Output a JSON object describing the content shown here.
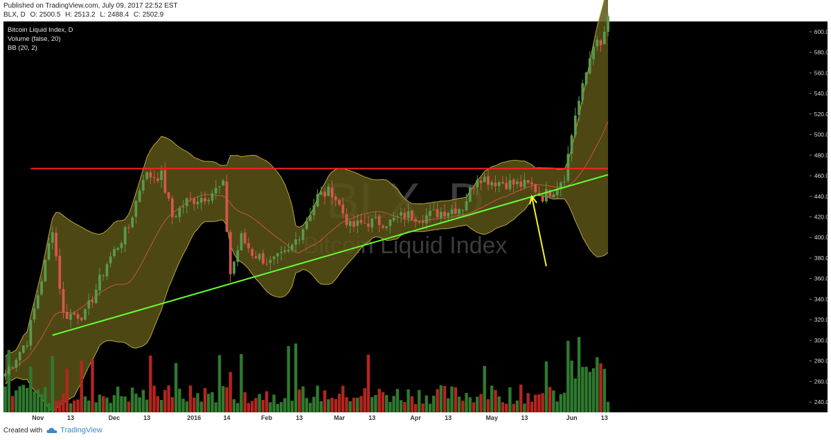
{
  "header": {
    "published": "Published on TradingView.com, July 09, 2017 22:52 EST",
    "symbol": "BLX, D",
    "open": "O: 2500.5",
    "high": "H: 2513.2",
    "low": "L: 2488.4",
    "close": "C: 2502.9"
  },
  "legend": {
    "title": "Bitcoin Liquid Index, D",
    "volume": "Volume (false, 20)",
    "bb": "BB (20, 2)"
  },
  "watermark": {
    "ticker": "BLX, D",
    "name": "Bitcoin Liquid Index"
  },
  "footer": {
    "created_with": "Created with",
    "brand": "TradingView"
  },
  "colors": {
    "background": "#000000",
    "up_candle": "#5a9a4e",
    "down_candle": "#d6574b",
    "band_fill": "#5a5418",
    "band_line": "#b7a93a",
    "basis_line": "#c9563c",
    "resistance": "#ff2020",
    "support": "#66ff33",
    "arrow": "#f5f52a",
    "vol_up": "#2f7a2f",
    "vol_down": "#b3261e"
  },
  "chart_data": {
    "type": "candlestick",
    "title": "Bitcoin Liquid Index, D",
    "ylim": [
      230,
      610
    ],
    "y_ticks": [
      240,
      260,
      280,
      300,
      320,
      340,
      360,
      380,
      400,
      420,
      440,
      460,
      480,
      500,
      520,
      540,
      560,
      580,
      600
    ],
    "x_labels": [
      "Nov",
      "13",
      "Dec",
      "13",
      "2016",
      "14",
      "Feb",
      "13",
      "Mar",
      "13",
      "Apr",
      "13",
      "May",
      "13",
      "Jun",
      "13"
    ],
    "bar_count": 222,
    "x_label_bars": [
      9,
      18,
      30,
      39,
      52,
      61,
      72,
      81,
      92,
      101,
      113,
      122,
      134,
      143,
      156,
      165
    ],
    "anchors": [
      {
        "bar": 0,
        "close": 268
      },
      {
        "bar": 6,
        "close": 300
      },
      {
        "bar": 11,
        "close": 375
      },
      {
        "bar": 13,
        "close": 410
      },
      {
        "bar": 16,
        "close": 325
      },
      {
        "bar": 22,
        "close": 325
      },
      {
        "bar": 28,
        "close": 375
      },
      {
        "bar": 34,
        "close": 410
      },
      {
        "bar": 38,
        "close": 460
      },
      {
        "bar": 43,
        "close": 460
      },
      {
        "bar": 46,
        "close": 420
      },
      {
        "bar": 50,
        "close": 435
      },
      {
        "bar": 55,
        "close": 440
      },
      {
        "bar": 60,
        "close": 450
      },
      {
        "bar": 62,
        "close": 365
      },
      {
        "bar": 65,
        "close": 400
      },
      {
        "bar": 68,
        "close": 385
      },
      {
        "bar": 73,
        "close": 375
      },
      {
        "bar": 78,
        "close": 385
      },
      {
        "bar": 82,
        "close": 410
      },
      {
        "bar": 86,
        "close": 440
      },
      {
        "bar": 90,
        "close": 445
      },
      {
        "bar": 95,
        "close": 410
      },
      {
        "bar": 100,
        "close": 415
      },
      {
        "bar": 106,
        "close": 415
      },
      {
        "bar": 110,
        "close": 422
      },
      {
        "bar": 115,
        "close": 420
      },
      {
        "bar": 120,
        "close": 425
      },
      {
        "bar": 126,
        "close": 430
      },
      {
        "bar": 130,
        "close": 460
      },
      {
        "bar": 134,
        "close": 455
      },
      {
        "bar": 140,
        "close": 452
      },
      {
        "bar": 145,
        "close": 450
      },
      {
        "bar": 148,
        "close": 440
      },
      {
        "bar": 151,
        "close": 447
      },
      {
        "bar": 154,
        "close": 460
      },
      {
        "bar": 157,
        "close": 520
      },
      {
        "bar": 159,
        "close": 545
      },
      {
        "bar": 162,
        "close": 590
      },
      {
        "bar": 164,
        "close": 585
      },
      {
        "bar": 166,
        "close": 615
      }
    ],
    "bands": {
      "base_width": 30,
      "squeeze_bar": 149,
      "upper_extra": 6
    },
    "lines": {
      "resistance": {
        "y": 467,
        "from_bar": 7,
        "to_bar": 166
      },
      "support": {
        "from_bar": 13,
        "from_y": 305,
        "to_bar": 166,
        "to_y": 461
      }
    },
    "arrow": {
      "from_bar": 149,
      "from_y": 372,
      "to_bar": 145,
      "to_y": 440
    }
  }
}
